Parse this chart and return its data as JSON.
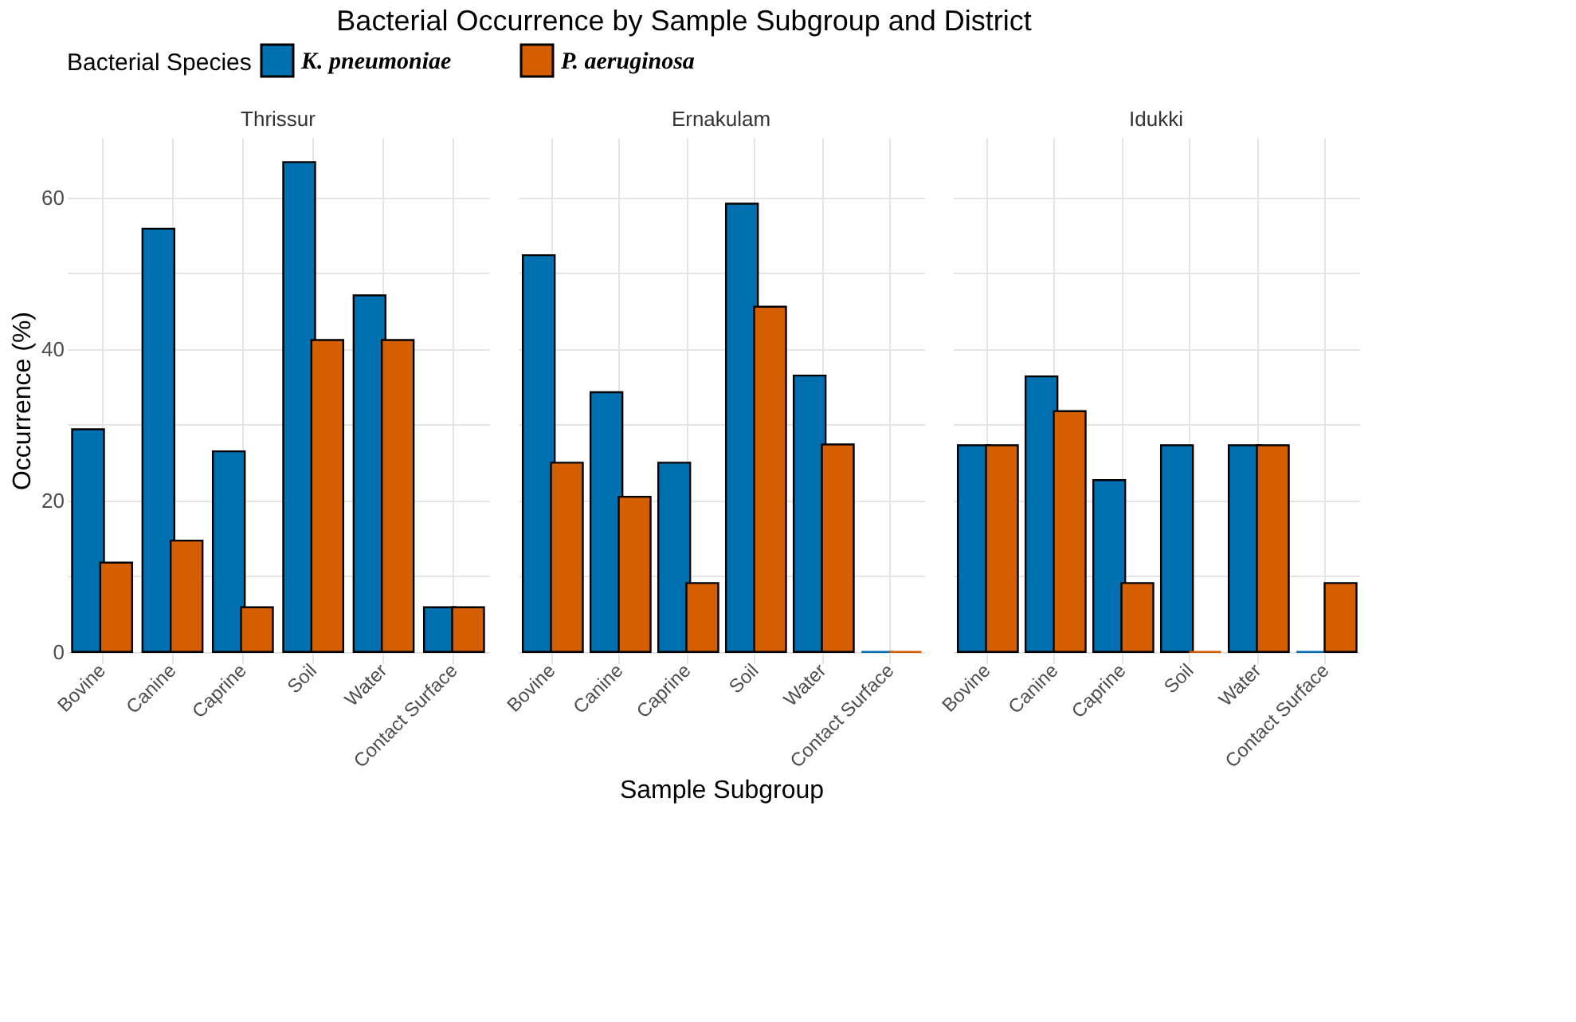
{
  "chart_data": [
    {
      "type": "bar",
      "title": "Bacterial Occurrence by Sample Subgroup and District",
      "subtitle": "Thrissur",
      "legend_title": "Bacterial Species",
      "legend": "top",
      "ylabel": "Occurrence (%)",
      "grid": true,
      "categories": [
        "Bovine",
        "Canine",
        "Caprine",
        "Soil",
        "Water",
        "Contact Surface"
      ],
      "series": [
        {
          "name": "K. pneumoniae",
          "color": "#0070b0",
          "values": [
            29.4,
            55.9,
            26.5,
            64.7,
            47.1,
            5.9
          ]
        },
        {
          "name": "P. aeruginosa",
          "color": "#d55e00",
          "values": [
            11.8,
            14.7,
            5.9,
            41.2,
            41.2,
            5.9
          ]
        }
      ],
      "ylim": [
        -1.5,
        68
      ],
      "yticks": [
        0,
        {
          "value": 10,
          "label": null
        },
        20,
        {
          "value": 30,
          "label": null
        },
        40,
        {
          "value": 50,
          "label": null
        },
        60
      ]
    },
    {
      "type": "bar",
      "subtitle": "Ernakulam",
      "xlabel": "Sample Subgroup",
      "grid": true,
      "tick_labels": "x",
      "categories": [
        "Bovine",
        "Canine",
        "Caprine",
        "Soil",
        "Water",
        "Contact Surface"
      ],
      "series": [
        {
          "color": "#0070b0",
          "values": [
            52.4,
            34.3,
            25.0,
            59.2,
            36.5,
            0
          ]
        },
        {
          "color": "#d55e00",
          "values": [
            25.0,
            20.5,
            9.1,
            45.6,
            27.4,
            0
          ]
        }
      ],
      "ylim": [
        -1.5,
        68
      ],
      "yticks": [
        0,
        {
          "value": 10,
          "label": null
        },
        20,
        {
          "value": 30,
          "label": null
        },
        40,
        {
          "value": 50,
          "label": null
        },
        60
      ]
    },
    {
      "type": "bar",
      "subtitle": "Idukki",
      "grid": true,
      "tick_labels": "x",
      "categories": [
        "Bovine",
        "Canine",
        "Caprine",
        "Soil",
        "Water",
        "Contact Surface"
      ],
      "series": [
        {
          "color": "#0070b0",
          "values": [
            27.3,
            36.4,
            22.7,
            27.3,
            27.3,
            0
          ]
        },
        {
          "color": "#d55e00",
          "values": [
            27.3,
            31.8,
            9.1,
            0,
            27.3,
            9.1
          ]
        }
      ],
      "ylim": [
        -1.5,
        68
      ],
      "yticks": [
        0,
        {
          "value": 10,
          "label": null
        },
        20,
        {
          "value": 30,
          "label": null
        },
        40,
        {
          "value": 50,
          "label": null
        },
        60
      ]
    }
  ]
}
